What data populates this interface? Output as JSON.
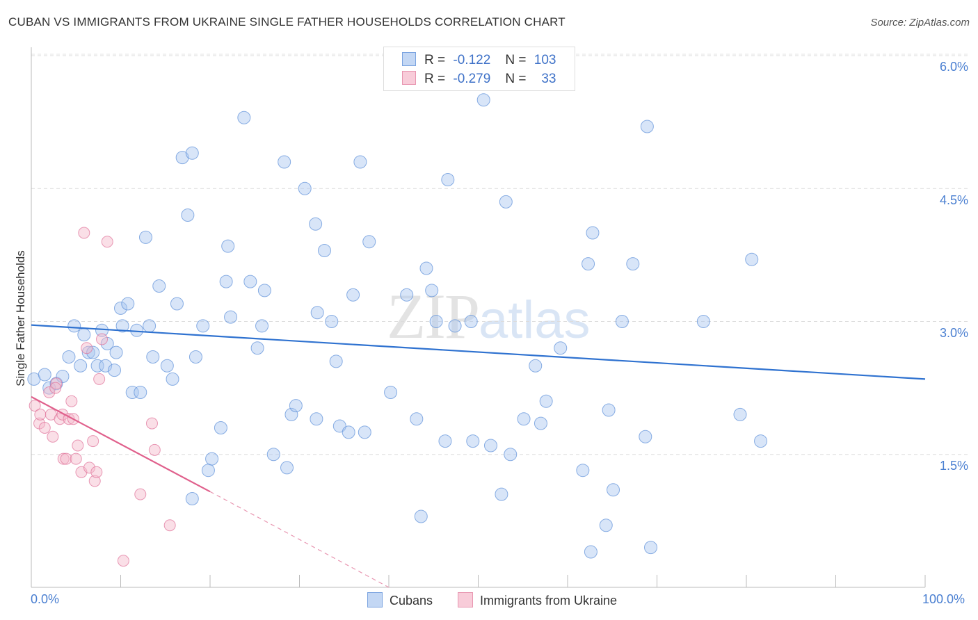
{
  "title": "CUBAN VS IMMIGRANTS FROM UKRAINE SINGLE FATHER HOUSEHOLDS CORRELATION CHART",
  "source": "Source: ZipAtlas.com",
  "watermark": {
    "zip": "ZIP",
    "atlas": "atlas"
  },
  "legend": {
    "rows": [
      {
        "r_label": "R =",
        "r_value": "-0.122",
        "n_label": "N =",
        "n_value": "103",
        "color": "#a9c6f0"
      },
      {
        "r_label": "R =",
        "r_value": "-0.279",
        "n_label": "N =",
        "n_value": "33",
        "color": "#f5b8ca"
      }
    ]
  },
  "bottom_legend": [
    {
      "label": "Cubans",
      "color": "#a9c6f0"
    },
    {
      "label": "Immigrants from Ukraine",
      "color": "#f5b8ca"
    }
  ],
  "chart_data": {
    "type": "scatter",
    "title": "CUBAN VS IMMIGRANTS FROM UKRAINE SINGLE FATHER HOUSEHOLDS CORRELATION CHART",
    "ylabel": "Single Father Households",
    "xlabel": "",
    "xlim": [
      0,
      100
    ],
    "ylim": [
      0,
      6.2
    ],
    "x_tick_labels": [
      "0.0%",
      "100.0%"
    ],
    "y_ticks": [
      1.5,
      3.0,
      4.5,
      6.0
    ],
    "y_tick_labels": [
      "1.5%",
      "3.0%",
      "4.5%",
      "6.0%"
    ],
    "grid": "horizontal dashed",
    "series": [
      {
        "name": "Cubans",
        "color": "#5b8fd9",
        "fill": "#a9c6f0",
        "trend": {
          "x0": 0,
          "y0": 2.96,
          "x1": 100,
          "y1": 2.35
        },
        "points": [
          [
            0.3,
            2.35
          ],
          [
            1.5,
            2.4
          ],
          [
            2.0,
            2.25
          ],
          [
            2.8,
            2.3
          ],
          [
            3.5,
            2.38
          ],
          [
            4.2,
            2.6
          ],
          [
            4.8,
            2.95
          ],
          [
            5.5,
            2.5
          ],
          [
            5.9,
            2.85
          ],
          [
            6.4,
            2.65
          ],
          [
            6.9,
            2.65
          ],
          [
            7.4,
            2.5
          ],
          [
            7.9,
            2.9
          ],
          [
            8.3,
            2.5
          ],
          [
            8.5,
            2.75
          ],
          [
            9.3,
            2.45
          ],
          [
            9.5,
            2.65
          ],
          [
            10.0,
            3.15
          ],
          [
            10.2,
            2.95
          ],
          [
            10.8,
            3.2
          ],
          [
            11.3,
            2.2
          ],
          [
            11.8,
            2.9
          ],
          [
            12.2,
            2.2
          ],
          [
            12.8,
            3.95
          ],
          [
            13.2,
            2.95
          ],
          [
            13.6,
            2.6
          ],
          [
            14.3,
            3.4
          ],
          [
            15.2,
            2.5
          ],
          [
            15.8,
            2.35
          ],
          [
            16.3,
            3.2
          ],
          [
            16.9,
            4.85
          ],
          [
            17.5,
            4.2
          ],
          [
            18.0,
            4.9
          ],
          [
            18.4,
            2.6
          ],
          [
            19.2,
            2.95
          ],
          [
            19.8,
            1.32
          ],
          [
            20.2,
            1.45
          ],
          [
            21.2,
            1.8
          ],
          [
            21.8,
            3.45
          ],
          [
            22.0,
            3.85
          ],
          [
            22.3,
            3.05
          ],
          [
            23.8,
            5.3
          ],
          [
            24.5,
            3.45
          ],
          [
            25.3,
            2.7
          ],
          [
            25.8,
            2.95
          ],
          [
            26.1,
            3.35
          ],
          [
            27.1,
            1.5
          ],
          [
            28.3,
            4.8
          ],
          [
            28.6,
            1.35
          ],
          [
            29.1,
            1.95
          ],
          [
            29.6,
            2.05
          ],
          [
            30.6,
            4.5
          ],
          [
            31.8,
            4.1
          ],
          [
            31.9,
            1.9
          ],
          [
            32.8,
            3.8
          ],
          [
            33.6,
            3.0
          ],
          [
            34.1,
            2.55
          ],
          [
            34.5,
            1.82
          ],
          [
            35.5,
            1.75
          ],
          [
            36.0,
            3.3
          ],
          [
            36.8,
            4.8
          ],
          [
            37.3,
            1.75
          ],
          [
            37.8,
            3.9
          ],
          [
            40.2,
            2.2
          ],
          [
            42.0,
            3.3
          ],
          [
            43.1,
            1.9
          ],
          [
            43.6,
            0.8
          ],
          [
            44.2,
            3.6
          ],
          [
            44.8,
            3.35
          ],
          [
            45.3,
            3.0
          ],
          [
            46.3,
            1.65
          ],
          [
            46.6,
            4.6
          ],
          [
            47.4,
            2.95
          ],
          [
            49.4,
            1.65
          ],
          [
            50.6,
            5.5
          ],
          [
            51.4,
            1.6
          ],
          [
            52.6,
            1.05
          ],
          [
            53.1,
            4.35
          ],
          [
            53.6,
            1.5
          ],
          [
            55.1,
            1.9
          ],
          [
            56.4,
            2.5
          ],
          [
            57.6,
            2.1
          ],
          [
            59.2,
            2.7
          ],
          [
            61.7,
            1.32
          ],
          [
            62.3,
            3.65
          ],
          [
            62.6,
            0.4
          ],
          [
            62.8,
            4.0
          ],
          [
            64.3,
            0.7
          ],
          [
            64.6,
            2.0
          ],
          [
            65.1,
            1.1
          ],
          [
            66.1,
            3.0
          ],
          [
            67.3,
            3.65
          ],
          [
            68.7,
            1.7
          ],
          [
            68.9,
            5.2
          ],
          [
            69.3,
            0.45
          ],
          [
            75.2,
            3.0
          ],
          [
            79.3,
            1.95
          ],
          [
            80.6,
            3.7
          ],
          [
            81.6,
            1.65
          ],
          [
            18.0,
            1.0
          ],
          [
            32.0,
            3.1
          ],
          [
            49.2,
            3.0
          ],
          [
            57.0,
            1.85
          ]
        ]
      },
      {
        "name": "Immigrants from Ukraine",
        "color": "#e07098",
        "fill": "#f5b8ca",
        "trend": {
          "x0": 0,
          "y0": 2.15,
          "x1": 20,
          "y1": 1.08
        },
        "trend_extension": {
          "x0": 20,
          "y0": 1.08,
          "x1": 40,
          "y1": 0.0
        },
        "points": [
          [
            0.4,
            2.05
          ],
          [
            0.9,
            1.85
          ],
          [
            1.0,
            1.95
          ],
          [
            1.5,
            1.8
          ],
          [
            2.0,
            2.2
          ],
          [
            2.2,
            1.95
          ],
          [
            2.4,
            1.7
          ],
          [
            2.8,
            2.3
          ],
          [
            3.2,
            1.9
          ],
          [
            3.5,
            1.95
          ],
          [
            3.6,
            1.45
          ],
          [
            3.9,
            1.45
          ],
          [
            4.2,
            1.9
          ],
          [
            4.5,
            2.1
          ],
          [
            4.7,
            1.9
          ],
          [
            5.0,
            1.45
          ],
          [
            5.2,
            1.6
          ],
          [
            5.6,
            1.3
          ],
          [
            5.9,
            4.0
          ],
          [
            6.2,
            2.7
          ],
          [
            6.5,
            1.35
          ],
          [
            6.9,
            1.65
          ],
          [
            7.1,
            1.2
          ],
          [
            7.3,
            1.3
          ],
          [
            7.6,
            2.35
          ],
          [
            7.9,
            2.8
          ],
          [
            8.5,
            3.9
          ],
          [
            10.3,
            0.3
          ],
          [
            12.2,
            1.05
          ],
          [
            13.5,
            1.85
          ],
          [
            13.8,
            1.55
          ],
          [
            15.5,
            0.7
          ],
          [
            2.7,
            2.25
          ]
        ]
      }
    ]
  }
}
